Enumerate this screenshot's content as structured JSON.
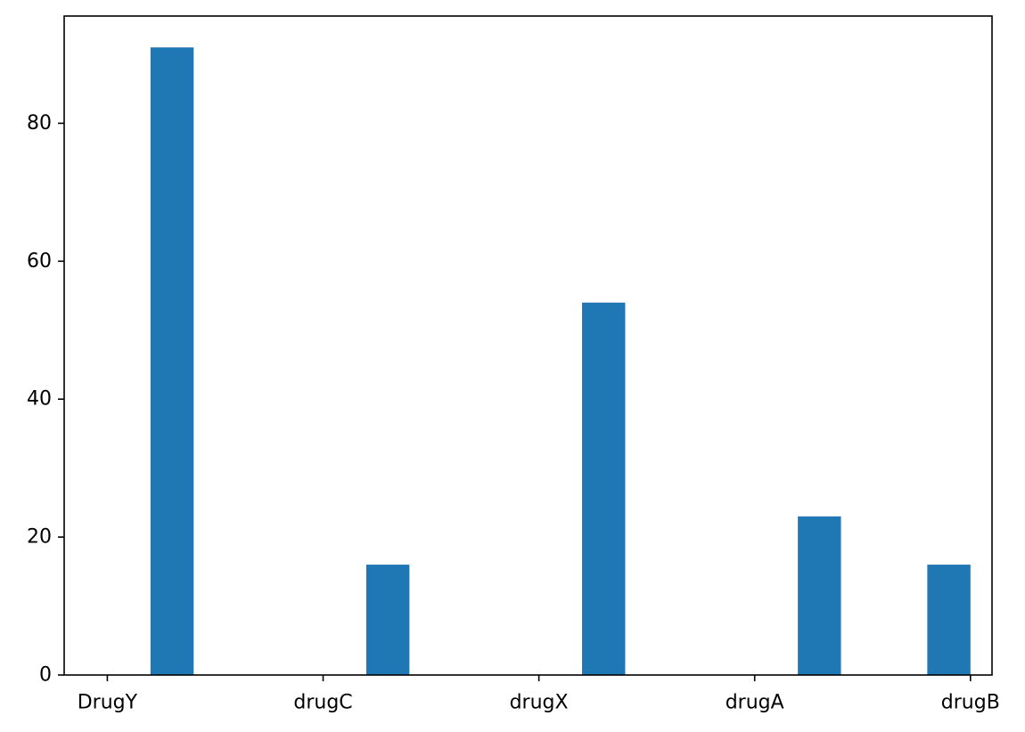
{
  "chart_data": {
    "type": "bar",
    "chart_kind": "histogram",
    "categories": [
      "DrugY",
      "drugC",
      "drugX",
      "drugA",
      "drugB"
    ],
    "values": [
      91,
      16,
      54,
      23,
      16
    ],
    "title": "",
    "xlabel": "",
    "ylabel": "",
    "ylim": [
      0,
      95.55
    ],
    "yticks": [
      0,
      20,
      40,
      60,
      80
    ],
    "grid": false,
    "bar_color": "#1f77b4",
    "axis_color": "#000000"
  }
}
